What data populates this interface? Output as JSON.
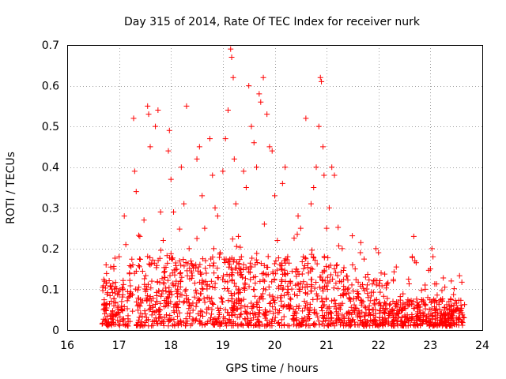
{
  "chart_data": {
    "type": "scatter",
    "title": "Day 315 of 2014, Rate Of TEC Index for receiver nurk",
    "xlabel": "GPS time / hours",
    "ylabel": "ROTI / TECUs",
    "xlim": [
      16,
      24
    ],
    "ylim": [
      0,
      0.7
    ],
    "xticks": [
      "16",
      "17",
      "18",
      "19",
      "20",
      "21",
      "22",
      "23",
      "24"
    ],
    "yticks": [
      "0",
      "0.1",
      "0.2",
      "0.3",
      "0.4",
      "0.5",
      "0.6",
      "0.7"
    ],
    "grid": true,
    "marker": "+",
    "color": "#ff0000",
    "data_range_hours": [
      16.67,
      23.67
    ],
    "series": [
      {
        "name": "ROTI",
        "points": [
          [
            16.7,
            0.05
          ],
          [
            16.72,
            0.12
          ],
          [
            16.75,
            0.16
          ],
          [
            16.8,
            0.02
          ],
          [
            16.85,
            0.04
          ],
          [
            16.9,
            0.15
          ],
          [
            17.0,
            0.18
          ],
          [
            17.05,
            0.07
          ],
          [
            17.1,
            0.28
          ],
          [
            17.13,
            0.21
          ],
          [
            17.2,
            0.14
          ],
          [
            17.28,
            0.52
          ],
          [
            17.3,
            0.39
          ],
          [
            17.33,
            0.34
          ],
          [
            17.4,
            0.23
          ],
          [
            17.48,
            0.27
          ],
          [
            17.55,
            0.55
          ],
          [
            17.57,
            0.53
          ],
          [
            17.6,
            0.45
          ],
          [
            17.63,
            0.12
          ],
          [
            17.7,
            0.5
          ],
          [
            17.75,
            0.54
          ],
          [
            17.8,
            0.29
          ],
          [
            17.85,
            0.22
          ],
          [
            17.9,
            0.06
          ],
          [
            17.95,
            0.44
          ],
          [
            17.97,
            0.49
          ],
          [
            18.0,
            0.37
          ],
          [
            18.05,
            0.29
          ],
          [
            18.1,
            0.12
          ],
          [
            18.12,
            0.09
          ],
          [
            18.2,
            0.4
          ],
          [
            18.25,
            0.31
          ],
          [
            18.3,
            0.55
          ],
          [
            18.35,
            0.2
          ],
          [
            18.4,
            0.14
          ],
          [
            18.5,
            0.42
          ],
          [
            18.55,
            0.45
          ],
          [
            18.6,
            0.33
          ],
          [
            18.65,
            0.25
          ],
          [
            18.7,
            0.08
          ],
          [
            18.75,
            0.47
          ],
          [
            18.8,
            0.38
          ],
          [
            18.85,
            0.3
          ],
          [
            18.9,
            0.28
          ],
          [
            18.95,
            0.19
          ],
          [
            19.0,
            0.39
          ],
          [
            19.05,
            0.47
          ],
          [
            19.1,
            0.54
          ],
          [
            19.15,
            0.69
          ],
          [
            19.17,
            0.67
          ],
          [
            19.2,
            0.62
          ],
          [
            19.22,
            0.42
          ],
          [
            19.25,
            0.31
          ],
          [
            19.3,
            0.23
          ],
          [
            19.35,
            0.15
          ],
          [
            19.4,
            0.39
          ],
          [
            19.45,
            0.35
          ],
          [
            19.5,
            0.6
          ],
          [
            19.55,
            0.5
          ],
          [
            19.6,
            0.46
          ],
          [
            19.65,
            0.4
          ],
          [
            19.7,
            0.58
          ],
          [
            19.73,
            0.56
          ],
          [
            19.78,
            0.62
          ],
          [
            19.8,
            0.26
          ],
          [
            19.85,
            0.53
          ],
          [
            19.9,
            0.45
          ],
          [
            19.95,
            0.44
          ],
          [
            20.0,
            0.33
          ],
          [
            20.05,
            0.22
          ],
          [
            20.1,
            0.16
          ],
          [
            20.15,
            0.36
          ],
          [
            20.2,
            0.4
          ],
          [
            20.25,
            0.18
          ],
          [
            20.3,
            0.12
          ],
          [
            20.4,
            0.11
          ],
          [
            20.45,
            0.28
          ],
          [
            20.5,
            0.25
          ],
          [
            20.55,
            0.18
          ],
          [
            20.6,
            0.52
          ],
          [
            20.65,
            0.14
          ],
          [
            20.7,
            0.31
          ],
          [
            20.75,
            0.35
          ],
          [
            20.8,
            0.4
          ],
          [
            20.85,
            0.5
          ],
          [
            20.88,
            0.62
          ],
          [
            20.9,
            0.61
          ],
          [
            20.93,
            0.45
          ],
          [
            20.95,
            0.38
          ],
          [
            21.0,
            0.25
          ],
          [
            21.05,
            0.3
          ],
          [
            21.1,
            0.4
          ],
          [
            21.15,
            0.38
          ],
          [
            21.2,
            0.16
          ],
          [
            21.25,
            0.12
          ],
          [
            21.3,
            0.2
          ],
          [
            21.35,
            0.09
          ],
          [
            21.4,
            0.1
          ],
          [
            21.5,
            0.16
          ],
          [
            21.55,
            0.15
          ],
          [
            21.6,
            0.09
          ],
          [
            21.65,
            0.19
          ],
          [
            21.7,
            0.07
          ],
          [
            21.75,
            0.13
          ],
          [
            21.8,
            0.08
          ],
          [
            21.9,
            0.05
          ],
          [
            21.95,
            0.2
          ],
          [
            22.0,
            0.19
          ],
          [
            22.05,
            0.14
          ],
          [
            22.1,
            0.06
          ],
          [
            22.2,
            0.04
          ],
          [
            22.3,
            0.03
          ],
          [
            22.4,
            0.05
          ],
          [
            22.5,
            0.02
          ],
          [
            22.6,
            0.07
          ],
          [
            22.65,
            0.18
          ],
          [
            22.68,
            0.23
          ],
          [
            22.7,
            0.17
          ],
          [
            22.75,
            0.04
          ],
          [
            22.8,
            0.03
          ],
          [
            22.9,
            0.1
          ],
          [
            22.95,
            0.08
          ],
          [
            23.0,
            0.15
          ],
          [
            23.03,
            0.2
          ],
          [
            23.05,
            0.18
          ],
          [
            23.1,
            0.05
          ],
          [
            23.2,
            0.03
          ],
          [
            23.3,
            0.02
          ],
          [
            23.4,
            0.04
          ],
          [
            23.45,
            0.06
          ],
          [
            23.5,
            0.03
          ],
          [
            23.6,
            0.02
          ],
          [
            23.65,
            0.03
          ]
        ]
      }
    ]
  }
}
